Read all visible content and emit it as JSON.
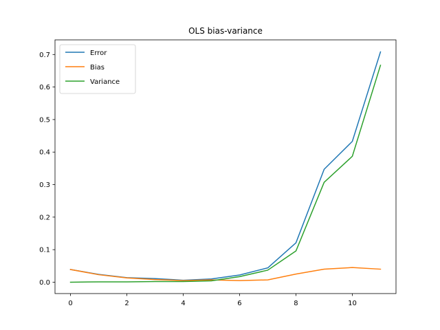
{
  "chart_data": {
    "type": "line",
    "title": "OLS bias-variance",
    "xlabel": "",
    "ylabel": "",
    "x": [
      0,
      1,
      2,
      3,
      4,
      5,
      6,
      7,
      8,
      9,
      10,
      11
    ],
    "xlim": [
      -0.55,
      11.55
    ],
    "ylim": [
      -0.035,
      0.745
    ],
    "xticks": [
      0,
      2,
      4,
      6,
      8,
      10
    ],
    "yticks": [
      0.0,
      0.1,
      0.2,
      0.3,
      0.4,
      0.5,
      0.6,
      0.7
    ],
    "ytick_labels": [
      "0.0",
      "0.1",
      "0.2",
      "0.3",
      "0.4",
      "0.5",
      "0.6",
      "0.7"
    ],
    "grid": false,
    "legend_position": "top-left",
    "series": [
      {
        "name": "Error",
        "color": "#1f77b4",
        "values": [
          0.039,
          0.024,
          0.014,
          0.011,
          0.006,
          0.01,
          0.022,
          0.044,
          0.121,
          0.347,
          0.433,
          0.708
        ]
      },
      {
        "name": "Bias",
        "color": "#ff7f0e",
        "values": [
          0.039,
          0.023,
          0.013,
          0.008,
          0.005,
          0.007,
          0.005,
          0.007,
          0.025,
          0.04,
          0.045,
          0.04
        ]
      },
      {
        "name": "Variance",
        "color": "#2ca02c",
        "values": [
          0.0,
          0.001,
          0.001,
          0.002,
          0.002,
          0.004,
          0.017,
          0.037,
          0.096,
          0.307,
          0.387,
          0.667
        ]
      }
    ]
  }
}
